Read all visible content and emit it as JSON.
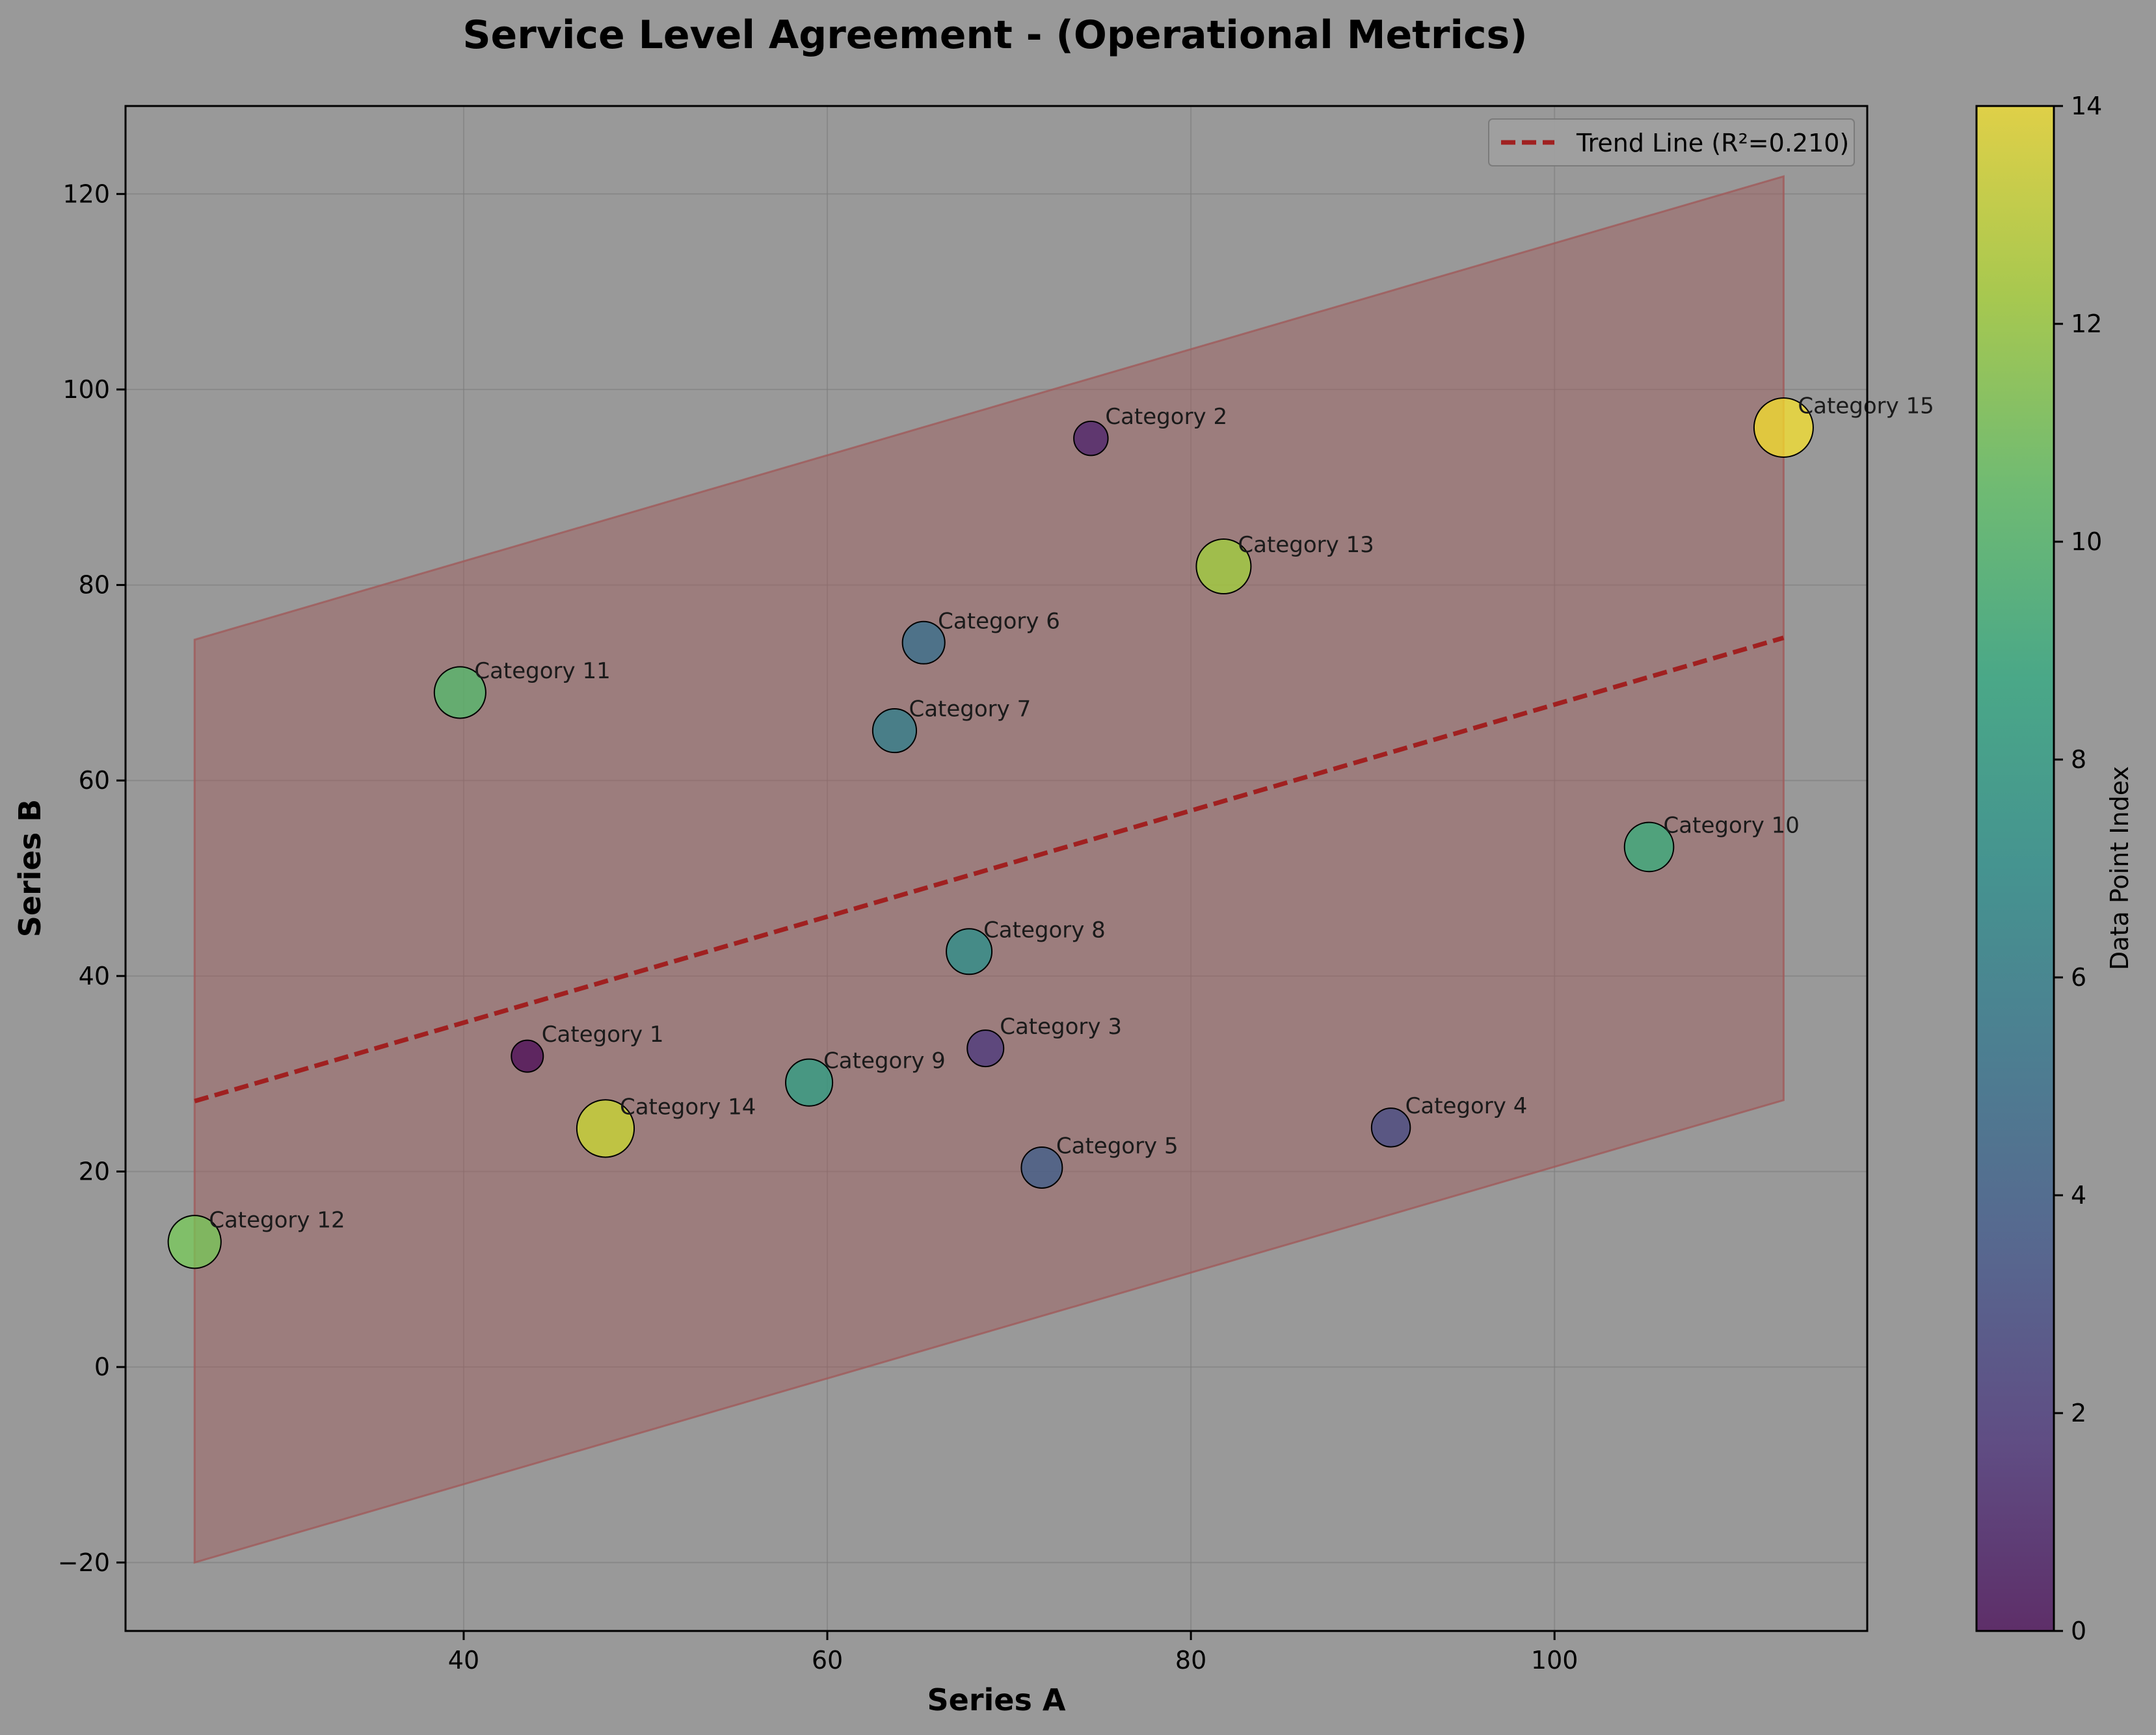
{
  "chart_data": {
    "type": "scatter",
    "title": "Service Level Agreement - (Operational Metrics)",
    "xlabel": "Series A",
    "ylabel": "Series B",
    "xlim": [
      21.4,
      117.2
    ],
    "ylim": [
      -27,
      129
    ],
    "xticks": [
      40,
      60,
      80,
      100
    ],
    "yticks": [
      -20,
      0,
      20,
      40,
      60,
      80,
      100,
      120
    ],
    "grid": true,
    "legend": {
      "position": "top-right",
      "label": "Trend Line (R²=0.210)"
    },
    "trend_line": {
      "x": [
        25.2,
        112.6
      ],
      "y": [
        27.2,
        74.6
      ],
      "color": "#a02020"
    },
    "confidence_band": {
      "x": [
        25.2,
        112.6
      ],
      "upper": [
        74.4,
        121.8
      ],
      "lower": [
        -20.0,
        27.3
      ],
      "color": "#a05a5a"
    },
    "points": [
      {
        "label": "Category 1",
        "x": 43.5,
        "y": 31.8,
        "index": 0,
        "size": 0.3
      },
      {
        "label": "Category 2",
        "x": 74.5,
        "y": 95.0,
        "index": 1,
        "size": 0.35
      },
      {
        "label": "Category 3",
        "x": 68.7,
        "y": 32.6,
        "index": 2,
        "size": 0.4
      },
      {
        "label": "Category 4",
        "x": 91.0,
        "y": 24.5,
        "index": 3,
        "size": 0.45
      },
      {
        "label": "Category 5",
        "x": 71.8,
        "y": 20.4,
        "index": 4,
        "size": 0.5
      },
      {
        "label": "Category 6",
        "x": 65.3,
        "y": 74.1,
        "index": 5,
        "size": 0.53
      },
      {
        "label": "Category 7",
        "x": 63.7,
        "y": 65.1,
        "index": 6,
        "size": 0.56
      },
      {
        "label": "Category 8",
        "x": 67.8,
        "y": 42.5,
        "index": 7,
        "size": 0.6
      },
      {
        "label": "Category 9",
        "x": 59.0,
        "y": 29.1,
        "index": 8,
        "size": 0.63
      },
      {
        "label": "Category 10",
        "x": 105.2,
        "y": 53.2,
        "index": 9,
        "size": 0.68
      },
      {
        "label": "Category 11",
        "x": 39.8,
        "y": 69.0,
        "index": 10,
        "size": 0.73
      },
      {
        "label": "Category 12",
        "x": 25.2,
        "y": 12.8,
        "index": 11,
        "size": 0.76
      },
      {
        "label": "Category 13",
        "x": 81.8,
        "y": 81.9,
        "index": 12,
        "size": 0.8
      },
      {
        "label": "Category 14",
        "x": 47.8,
        "y": 24.4,
        "index": 13,
        "size": 0.86
      },
      {
        "label": "Category 15",
        "x": 112.6,
        "y": 96.1,
        "index": 14,
        "size": 0.9
      }
    ],
    "colorbar": {
      "label": "Data Point Index",
      "min": 0,
      "max": 14,
      "ticks": [
        0,
        2,
        4,
        6,
        8,
        10,
        12,
        14
      ],
      "colormap": "viridis"
    }
  }
}
